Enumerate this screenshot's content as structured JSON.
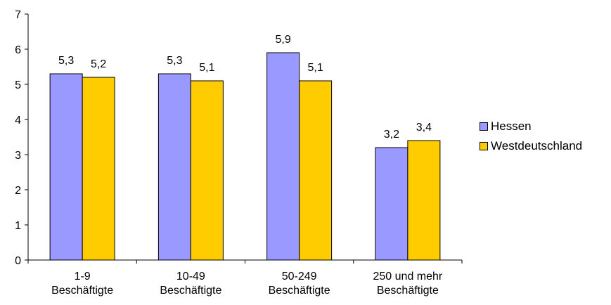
{
  "chart_data": {
    "type": "bar",
    "categories": [
      [
        "1-9",
        "Beschäftigte"
      ],
      [
        "10-49",
        "Beschäftigte"
      ],
      [
        "50-249",
        "Beschäftigte"
      ],
      [
        "250 und mehr",
        "Beschäftigte"
      ]
    ],
    "series": [
      {
        "name": "Hessen",
        "values": [
          5.3,
          5.3,
          5.9,
          3.2
        ],
        "labels": [
          "5,3",
          "5,3",
          "5,9",
          "3,2"
        ],
        "color": "#9999ff"
      },
      {
        "name": "Westdeutschland",
        "values": [
          5.2,
          5.1,
          5.1,
          3.4
        ],
        "labels": [
          "5,2",
          "5,1",
          "5,1",
          "3,4"
        ],
        "color": "#ffcc00"
      }
    ],
    "yticks": [
      0,
      1,
      2,
      3,
      4,
      5,
      6,
      7
    ],
    "ylim": [
      0,
      7
    ],
    "legend_position": "right",
    "grid": false
  }
}
